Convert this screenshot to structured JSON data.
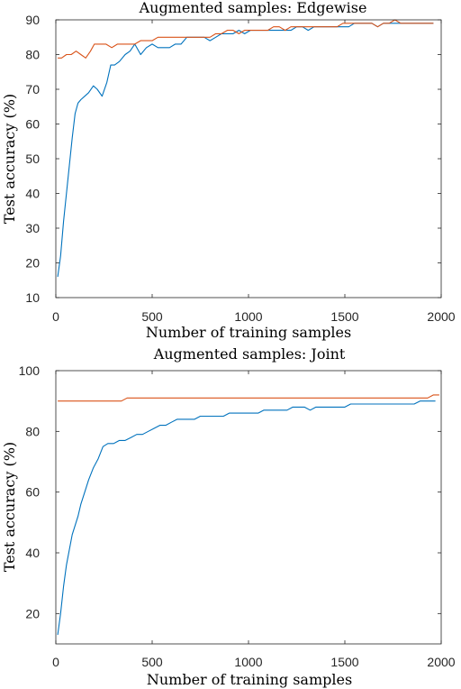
{
  "chart_data": [
    {
      "type": "line",
      "title": "Augmented samples: Edgewise",
      "xlabel": "Number of training samples",
      "ylabel": "Test accuracy (%)",
      "xlim": [
        0,
        2000
      ],
      "ylim": [
        10,
        90
      ],
      "xticks": [
        0,
        500,
        1000,
        1500,
        2000
      ],
      "yticks": [
        10,
        20,
        30,
        40,
        50,
        60,
        70,
        80,
        90
      ],
      "grid": false,
      "series": [
        {
          "color": "#0072BD",
          "points": [
            [
              10,
              16
            ],
            [
              25,
              22
            ],
            [
              40,
              32
            ],
            [
              55,
              40
            ],
            [
              70,
              48
            ],
            [
              85,
              56
            ],
            [
              100,
              63
            ],
            [
              115,
              66
            ],
            [
              130,
              67
            ],
            [
              150,
              68
            ],
            [
              170,
              69
            ],
            [
              195,
              71
            ],
            [
              215,
              70
            ],
            [
              240,
              68
            ],
            [
              265,
              72
            ],
            [
              285,
              77
            ],
            [
              305,
              77
            ],
            [
              330,
              78
            ],
            [
              360,
              80
            ],
            [
              385,
              81
            ],
            [
              410,
              83
            ],
            [
              440,
              80
            ],
            [
              470,
              82
            ],
            [
              500,
              83
            ],
            [
              530,
              82
            ],
            [
              560,
              82
            ],
            [
              590,
              82
            ],
            [
              620,
              83
            ],
            [
              650,
              83
            ],
            [
              680,
              85
            ],
            [
              710,
              85
            ],
            [
              740,
              85
            ],
            [
              770,
              85
            ],
            [
              800,
              84
            ],
            [
              830,
              85
            ],
            [
              860,
              86
            ],
            [
              890,
              86
            ],
            [
              920,
              86
            ],
            [
              950,
              87
            ],
            [
              980,
              86
            ],
            [
              1010,
              87
            ],
            [
              1040,
              87
            ],
            [
              1070,
              87
            ],
            [
              1100,
              87
            ],
            [
              1130,
              87
            ],
            [
              1160,
              87
            ],
            [
              1190,
              87
            ],
            [
              1220,
              87
            ],
            [
              1250,
              88
            ],
            [
              1280,
              88
            ],
            [
              1310,
              87
            ],
            [
              1340,
              88
            ],
            [
              1370,
              88
            ],
            [
              1400,
              88
            ],
            [
              1430,
              88
            ],
            [
              1460,
              88
            ],
            [
              1490,
              88
            ],
            [
              1520,
              88
            ],
            [
              1550,
              89
            ],
            [
              1580,
              89
            ],
            [
              1610,
              89
            ],
            [
              1640,
              89
            ],
            [
              1670,
              88
            ],
            [
              1700,
              89
            ],
            [
              1730,
              89
            ],
            [
              1760,
              89
            ],
            [
              1790,
              89
            ],
            [
              1820,
              89
            ],
            [
              1850,
              89
            ],
            [
              1880,
              89
            ],
            [
              1910,
              89
            ],
            [
              1940,
              89
            ],
            [
              1960,
              89
            ]
          ]
        },
        {
          "color": "#D95319",
          "points": [
            [
              10,
              79
            ],
            [
              30,
              79
            ],
            [
              55,
              80
            ],
            [
              80,
              80
            ],
            [
              105,
              81
            ],
            [
              130,
              80
            ],
            [
              155,
              79
            ],
            [
              180,
              81
            ],
            [
              200,
              83
            ],
            [
              230,
              83
            ],
            [
              260,
              83
            ],
            [
              290,
              82
            ],
            [
              320,
              83
            ],
            [
              350,
              83
            ],
            [
              380,
              83
            ],
            [
              410,
              83
            ],
            [
              440,
              84
            ],
            [
              470,
              84
            ],
            [
              500,
              84
            ],
            [
              530,
              85
            ],
            [
              560,
              85
            ],
            [
              590,
              85
            ],
            [
              620,
              85
            ],
            [
              650,
              85
            ],
            [
              680,
              85
            ],
            [
              710,
              85
            ],
            [
              740,
              85
            ],
            [
              770,
              85
            ],
            [
              800,
              85
            ],
            [
              830,
              86
            ],
            [
              860,
              86
            ],
            [
              890,
              87
            ],
            [
              920,
              87
            ],
            [
              950,
              86
            ],
            [
              980,
              87
            ],
            [
              1010,
              87
            ],
            [
              1040,
              87
            ],
            [
              1070,
              87
            ],
            [
              1100,
              87
            ],
            [
              1130,
              88
            ],
            [
              1160,
              88
            ],
            [
              1190,
              87
            ],
            [
              1220,
              88
            ],
            [
              1250,
              88
            ],
            [
              1280,
              88
            ],
            [
              1310,
              88
            ],
            [
              1340,
              88
            ],
            [
              1370,
              88
            ],
            [
              1400,
              88
            ],
            [
              1430,
              88
            ],
            [
              1460,
              88
            ],
            [
              1490,
              89
            ],
            [
              1520,
              89
            ],
            [
              1550,
              89
            ],
            [
              1580,
              89
            ],
            [
              1610,
              89
            ],
            [
              1640,
              89
            ],
            [
              1670,
              88
            ],
            [
              1700,
              89
            ],
            [
              1730,
              89
            ],
            [
              1760,
              90
            ],
            [
              1790,
              89
            ],
            [
              1820,
              89
            ],
            [
              1850,
              89
            ],
            [
              1880,
              89
            ],
            [
              1910,
              89
            ],
            [
              1940,
              89
            ],
            [
              1960,
              89
            ]
          ]
        }
      ]
    },
    {
      "type": "line",
      "title": "Augmented samples: Joint",
      "xlabel": "Number of training samples",
      "ylabel": "Test accuracy (%)",
      "xlim": [
        0,
        2000
      ],
      "ylim": [
        10,
        100
      ],
      "xticks": [
        0,
        500,
        1000,
        1500,
        2000
      ],
      "yticks": [
        20,
        40,
        60,
        80,
        100
      ],
      "grid": false,
      "series": [
        {
          "color": "#0072BD",
          "points": [
            [
              10,
              13
            ],
            [
              25,
              20
            ],
            [
              40,
              29
            ],
            [
              55,
              36
            ],
            [
              70,
              41
            ],
            [
              85,
              46
            ],
            [
              100,
              49
            ],
            [
              115,
              52
            ],
            [
              130,
              56
            ],
            [
              150,
              60
            ],
            [
              170,
              64
            ],
            [
              195,
              68
            ],
            [
              220,
              71
            ],
            [
              245,
              75
            ],
            [
              270,
              76
            ],
            [
              300,
              76
            ],
            [
              330,
              77
            ],
            [
              360,
              77
            ],
            [
              390,
              78
            ],
            [
              420,
              79
            ],
            [
              450,
              79
            ],
            [
              480,
              80
            ],
            [
              510,
              81
            ],
            [
              540,
              82
            ],
            [
              570,
              82
            ],
            [
              600,
              83
            ],
            [
              630,
              84
            ],
            [
              660,
              84
            ],
            [
              690,
              84
            ],
            [
              720,
              84
            ],
            [
              750,
              85
            ],
            [
              780,
              85
            ],
            [
              810,
              85
            ],
            [
              840,
              85
            ],
            [
              870,
              85
            ],
            [
              900,
              86
            ],
            [
              930,
              86
            ],
            [
              960,
              86
            ],
            [
              990,
              86
            ],
            [
              1020,
              86
            ],
            [
              1050,
              86
            ],
            [
              1080,
              87
            ],
            [
              1110,
              87
            ],
            [
              1140,
              87
            ],
            [
              1170,
              87
            ],
            [
              1200,
              87
            ],
            [
              1230,
              88
            ],
            [
              1260,
              88
            ],
            [
              1290,
              88
            ],
            [
              1320,
              87
            ],
            [
              1350,
              88
            ],
            [
              1380,
              88
            ],
            [
              1410,
              88
            ],
            [
              1440,
              88
            ],
            [
              1470,
              88
            ],
            [
              1500,
              88
            ],
            [
              1530,
              89
            ],
            [
              1560,
              89
            ],
            [
              1590,
              89
            ],
            [
              1620,
              89
            ],
            [
              1650,
              89
            ],
            [
              1680,
              89
            ],
            [
              1710,
              89
            ],
            [
              1740,
              89
            ],
            [
              1770,
              89
            ],
            [
              1800,
              89
            ],
            [
              1830,
              89
            ],
            [
              1860,
              89
            ],
            [
              1890,
              90
            ],
            [
              1920,
              90
            ],
            [
              1950,
              90
            ],
            [
              1970,
              90
            ]
          ]
        },
        {
          "color": "#D95319",
          "points": [
            [
              10,
              90
            ],
            [
              40,
              90
            ],
            [
              70,
              90
            ],
            [
              100,
              90
            ],
            [
              130,
              90
            ],
            [
              160,
              90
            ],
            [
              190,
              90
            ],
            [
              220,
              90
            ],
            [
              250,
              90
            ],
            [
              280,
              90
            ],
            [
              310,
              90
            ],
            [
              340,
              90
            ],
            [
              370,
              91
            ],
            [
              400,
              91
            ],
            [
              430,
              91
            ],
            [
              460,
              91
            ],
            [
              490,
              91
            ],
            [
              520,
              91
            ],
            [
              550,
              91
            ],
            [
              580,
              91
            ],
            [
              610,
              91
            ],
            [
              640,
              91
            ],
            [
              670,
              91
            ],
            [
              700,
              91
            ],
            [
              730,
              91
            ],
            [
              760,
              91
            ],
            [
              790,
              91
            ],
            [
              820,
              91
            ],
            [
              850,
              91
            ],
            [
              880,
              91
            ],
            [
              910,
              91
            ],
            [
              940,
              91
            ],
            [
              970,
              91
            ],
            [
              1000,
              91
            ],
            [
              1030,
              91
            ],
            [
              1060,
              91
            ],
            [
              1090,
              91
            ],
            [
              1120,
              91
            ],
            [
              1150,
              91
            ],
            [
              1180,
              91
            ],
            [
              1210,
              91
            ],
            [
              1240,
              91
            ],
            [
              1270,
              91
            ],
            [
              1300,
              91
            ],
            [
              1330,
              91
            ],
            [
              1360,
              91
            ],
            [
              1390,
              91
            ],
            [
              1420,
              91
            ],
            [
              1450,
              91
            ],
            [
              1480,
              91
            ],
            [
              1510,
              91
            ],
            [
              1540,
              91
            ],
            [
              1570,
              91
            ],
            [
              1600,
              91
            ],
            [
              1630,
              91
            ],
            [
              1660,
              91
            ],
            [
              1690,
              91
            ],
            [
              1720,
              91
            ],
            [
              1750,
              91
            ],
            [
              1780,
              91
            ],
            [
              1810,
              91
            ],
            [
              1840,
              91
            ],
            [
              1870,
              91
            ],
            [
              1900,
              91
            ],
            [
              1930,
              91
            ],
            [
              1960,
              92
            ],
            [
              1990,
              92
            ]
          ]
        }
      ]
    }
  ]
}
